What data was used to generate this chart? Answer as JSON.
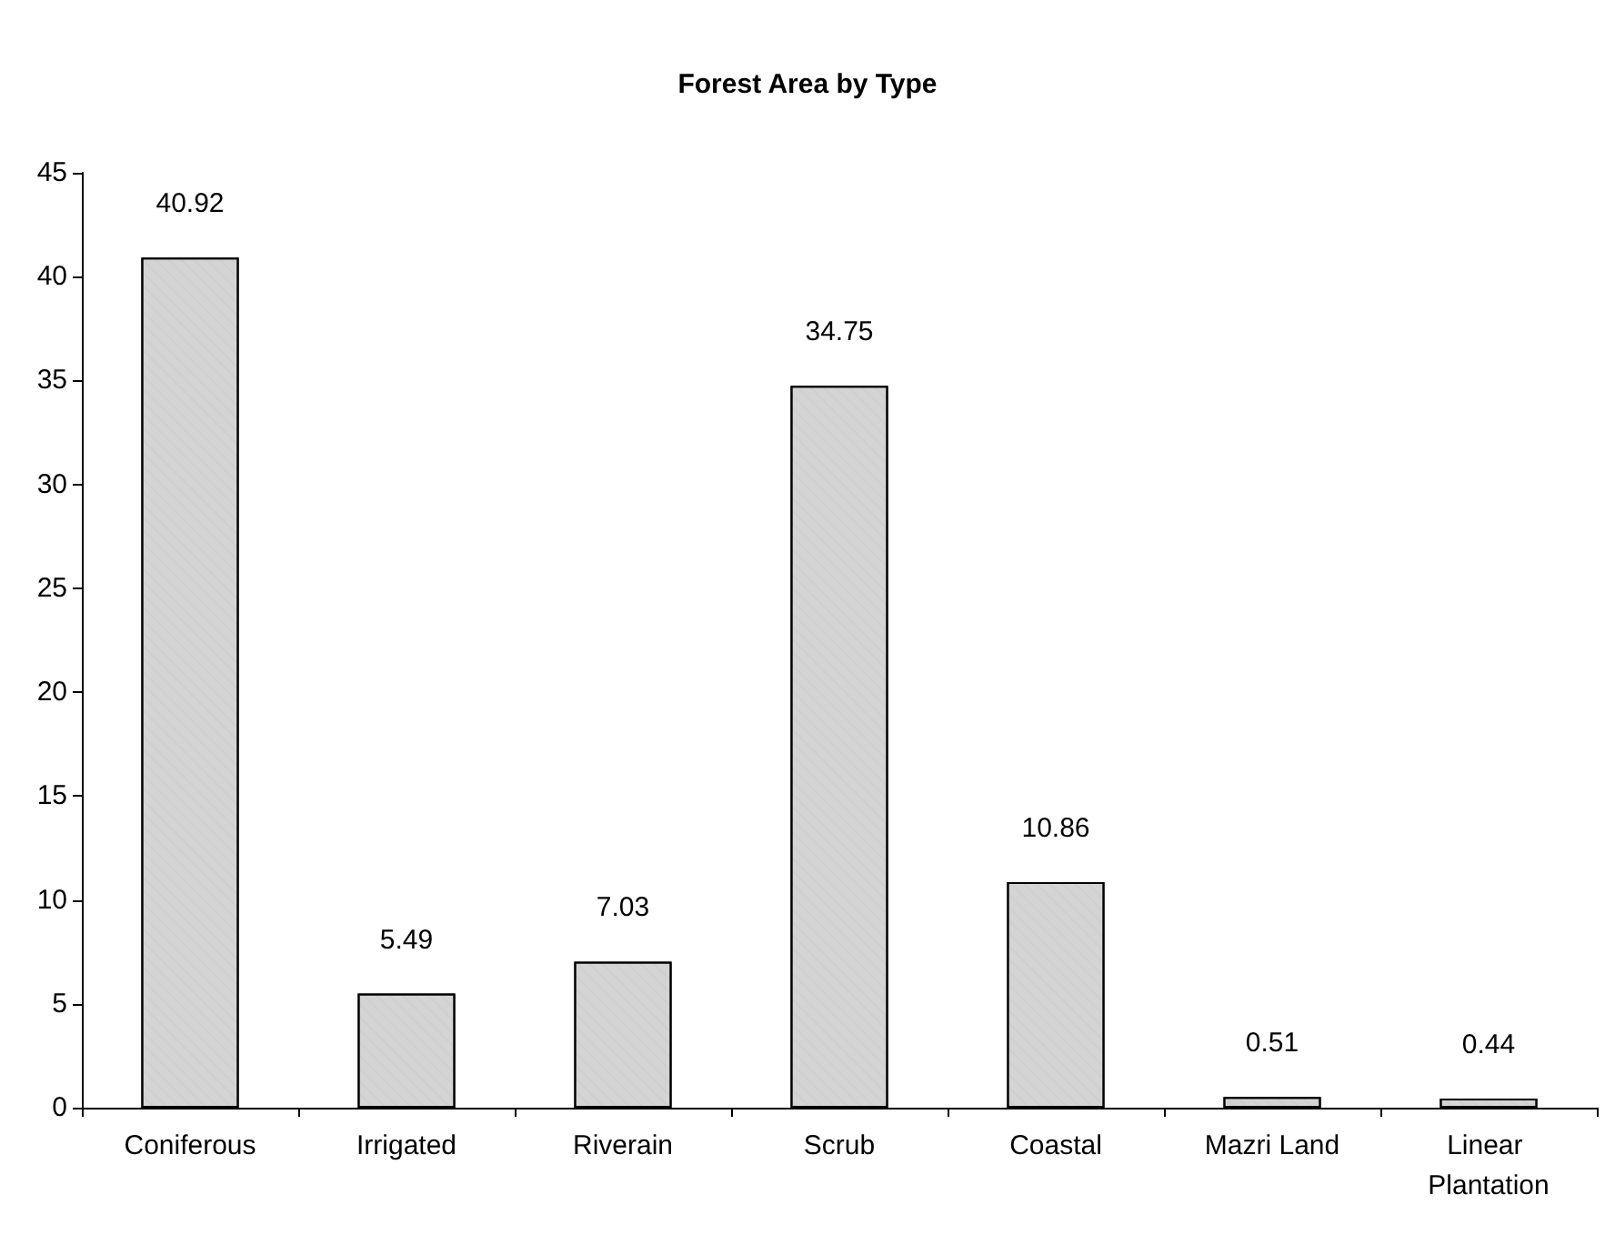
{
  "chart_data": {
    "type": "bar",
    "title": "Forest Area by Type",
    "categories": [
      "Coniferous",
      "Irrigated",
      "Riverain",
      "Scrub",
      "Coastal",
      "Mazri Land",
      "Linear Plantation"
    ],
    "values": [
      40.92,
      5.49,
      7.03,
      34.75,
      10.86,
      0.51,
      0.44
    ],
    "color": "#d4d4d4",
    "ylim": [
      0,
      45
    ],
    "yticks": [
      0,
      5,
      10,
      15,
      20,
      25,
      30,
      35,
      40,
      45
    ],
    "data_labels": true,
    "grid": false
  }
}
